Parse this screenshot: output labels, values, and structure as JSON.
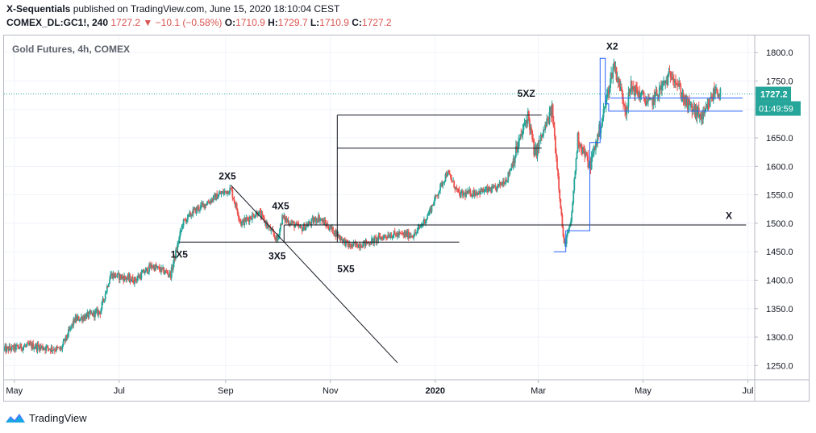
{
  "header": {
    "publisher": "X-Sequentials",
    "published_text": "published on TradingView.com, June 15, 2020 18:10:04 CEST",
    "symbol": "COMEX_DL:GC1!, 240",
    "last": "1727.2",
    "change_arrow": "▼",
    "change": "−10.1 (−0.58%)",
    "open_label": "O:",
    "open": "1710.9",
    "high_label": "H:",
    "high": "1729.7",
    "low_label": "L:",
    "low": "1710.9",
    "close_label": "C:",
    "close": "1727.2"
  },
  "footer": {
    "brand": "TradingView"
  },
  "colors": {
    "up": "#26a69a",
    "down": "#ef5350",
    "price_line": "#26a69a",
    "pattern_line": "#131722",
    "blue_line": "#2962ff",
    "price_label_bg": "#26a69a",
    "timer_bg": "#26a69a"
  },
  "chart_data": {
    "type": "candlestick",
    "title": "Gold Futures, 4h, COMEX",
    "ylim": [
      1225,
      1830
    ],
    "y_ticks": [
      1250,
      1300,
      1350,
      1400,
      1450,
      1500,
      1550,
      1600,
      1650,
      1700,
      1750,
      1800
    ],
    "y_tick_labels": [
      "1250.0",
      "1300.0",
      "1350.0",
      "1400.0",
      "1450.0",
      "1500.0",
      "1550.0",
      "1600.0",
      "1650.0",
      "1700.0",
      "1750.0",
      "1800.0"
    ],
    "x_ticks": [
      "2019-05-01",
      "2019-07-01",
      "2019-09-01",
      "2019-11-01",
      "2020-01-01",
      "2020-03-01",
      "2020-05-01",
      "2020-07-01"
    ],
    "x_tick_labels": [
      "May",
      "Jul",
      "Sep",
      "Nov",
      "2020",
      "Mar",
      "May",
      "Jul"
    ],
    "x_range": [
      "2019-04-25",
      "2020-07-05"
    ],
    "price_anchors": [
      [
        "2019-04-25",
        1278
      ],
      [
        "2019-05-10",
        1285
      ],
      [
        "2019-05-28",
        1278
      ],
      [
        "2019-06-05",
        1330
      ],
      [
        "2019-06-20",
        1345
      ],
      [
        "2019-06-26",
        1410
      ],
      [
        "2019-07-10",
        1400
      ],
      [
        "2019-07-20",
        1425
      ],
      [
        "2019-07-31",
        1410
      ],
      [
        "2019-08-07",
        1500
      ],
      [
        "2019-08-13",
        1520
      ],
      [
        "2019-08-28",
        1550
      ],
      [
        "2019-09-04",
        1560
      ],
      [
        "2019-09-10",
        1500
      ],
      [
        "2019-09-20",
        1520
      ],
      [
        "2019-10-01",
        1470
      ],
      [
        "2019-10-04",
        1510
      ],
      [
        "2019-10-15",
        1490
      ],
      [
        "2019-10-25",
        1510
      ],
      [
        "2019-11-05",
        1480
      ],
      [
        "2019-11-12",
        1460
      ],
      [
        "2019-11-22",
        1465
      ],
      [
        "2019-12-05",
        1480
      ],
      [
        "2019-12-20",
        1480
      ],
      [
        "2019-12-27",
        1510
      ],
      [
        "2020-01-08",
        1590
      ],
      [
        "2020-01-15",
        1550
      ],
      [
        "2020-02-05",
        1560
      ],
      [
        "2020-02-12",
        1580
      ],
      [
        "2020-02-24",
        1690
      ],
      [
        "2020-02-28",
        1620
      ],
      [
        "2020-03-09",
        1700
      ],
      [
        "2020-03-12",
        1600
      ],
      [
        "2020-03-16",
        1460
      ],
      [
        "2020-03-20",
        1500
      ],
      [
        "2020-03-24",
        1650
      ],
      [
        "2020-03-31",
        1600
      ],
      [
        "2020-04-07",
        1680
      ],
      [
        "2020-04-14",
        1780
      ],
      [
        "2020-04-21",
        1700
      ],
      [
        "2020-04-24",
        1740
      ],
      [
        "2020-05-05",
        1710
      ],
      [
        "2020-05-18",
        1765
      ],
      [
        "2020-05-26",
        1710
      ],
      [
        "2020-06-05",
        1685
      ],
      [
        "2020-06-12",
        1735
      ],
      [
        "2020-06-15",
        1727
      ]
    ],
    "last_price": 1727.2,
    "last_price_label": "1727.2",
    "countdown_label": "01:49:59",
    "annotations": [
      {
        "text": "1X5",
        "x": "2019-08-05",
        "y": 1440
      },
      {
        "text": "2X5",
        "x": "2019-09-02",
        "y": 1577
      },
      {
        "text": "3X5",
        "x": "2019-10-01",
        "y": 1437
      },
      {
        "text": "4X5",
        "x": "2019-10-03",
        "y": 1525
      },
      {
        "text": "5X5",
        "x": "2019-11-10",
        "y": 1414
      },
      {
        "text": "5XZ",
        "x": "2020-02-23",
        "y": 1722
      },
      {
        "text": "X2",
        "x": "2020-04-13",
        "y": 1805
      },
      {
        "text": "X",
        "x": "2020-06-20",
        "y": 1508
      }
    ],
    "pattern_lines": [
      {
        "x1": "2019-08-05",
        "y1": 1467,
        "x2": "2020-01-15",
        "y2": 1467
      },
      {
        "x1": "2019-09-04",
        "y1": 1567,
        "x2": "2019-12-10",
        "y2": 1255
      },
      {
        "x1": "2019-10-05",
        "y1": 1466,
        "x2": "2019-10-05",
        "y2": 1497
      },
      {
        "x1": "2019-10-05",
        "y1": 1497,
        "x2": "2020-06-30",
        "y2": 1497
      },
      {
        "x1": "2019-11-05",
        "y1": 1467,
        "x2": "2019-11-05",
        "y2": 1690
      },
      {
        "x1": "2019-11-05",
        "y1": 1690,
        "x2": "2020-03-03",
        "y2": 1690
      },
      {
        "x1": "2019-11-05",
        "y1": 1632,
        "x2": "2020-03-03",
        "y2": 1632
      }
    ],
    "blue_steps": [
      [
        "2020-03-10",
        1450
      ],
      [
        "2020-03-17",
        1450
      ],
      [
        "2020-03-17",
        1487
      ],
      [
        "2020-03-31",
        1487
      ],
      [
        "2020-03-31",
        1642
      ],
      [
        "2020-04-06",
        1642
      ],
      [
        "2020-04-06",
        1790
      ],
      [
        "2020-04-09",
        1790
      ],
      [
        "2020-04-09",
        1710
      ],
      [
        "2020-04-11",
        1710
      ],
      [
        "2020-04-11",
        1697
      ],
      [
        "2020-06-28",
        1697
      ]
    ],
    "blue_hline": {
      "x1": "2020-04-12",
      "x2": "2020-06-28",
      "y": 1720
    }
  }
}
